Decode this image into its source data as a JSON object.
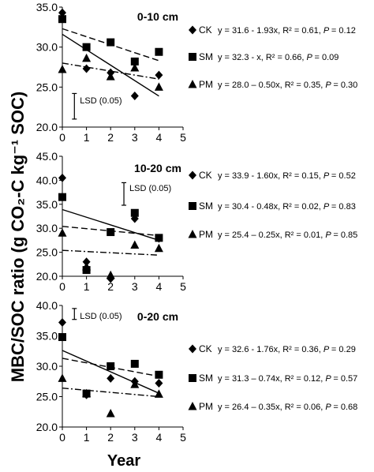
{
  "figure": {
    "ylabel": "MBC/SOC ratio (g CO₂-C kg⁻¹ SOC)",
    "xlabel": "Year"
  },
  "chart_data": [
    {
      "type": "scatter",
      "depth_label": "0-10 cm",
      "lsd_label": "LSD (0.05)",
      "lsd": {
        "x": 0.5,
        "y_low": 21.0,
        "y_high": 24.2
      },
      "xlim": [
        0,
        5
      ],
      "ylim": [
        20,
        35
      ],
      "xticks": [
        "0",
        "1",
        "2",
        "3",
        "4",
        "5"
      ],
      "yticks": [
        "20.0",
        "25.0",
        "30.0",
        "35.0"
      ],
      "series": [
        {
          "name": "CK",
          "marker": "diamond",
          "x": [
            0,
            1,
            2,
            3,
            4
          ],
          "y": [
            34.3,
            27.3,
            26.8,
            23.9,
            26.5
          ],
          "fit": {
            "intercept": 31.6,
            "slope": -1.93
          },
          "line": "solid",
          "equation": "y = 31.6 -  1.93x, R² = 0.61,",
          "p_label": "P",
          "p_value": "= 0.12"
        },
        {
          "name": "SM",
          "marker": "square",
          "x": [
            0,
            1,
            2,
            3,
            4
          ],
          "y": [
            33.5,
            30.0,
            30.6,
            28.2,
            29.4
          ],
          "fit": {
            "intercept": 32.3,
            "slope": -1.0
          },
          "line": "dashed",
          "equation": "y = 32.3 -  x, R² = 0.66,",
          "p_label": "P",
          "p_value": "= 0.09"
        },
        {
          "name": "PM",
          "marker": "triangle",
          "x": [
            0,
            1,
            2,
            3,
            4
          ],
          "y": [
            27.2,
            28.6,
            26.3,
            27.4,
            25.0
          ],
          "fit": {
            "intercept": 28.0,
            "slope": -0.5
          },
          "line": "dashdot",
          "equation": "y = 28.0 – 0.50x, R² = 0.35,",
          "p_label": "P",
          "p_value": "= 0.30"
        }
      ]
    },
    {
      "type": "scatter",
      "depth_label": "10-20 cm",
      "lsd_label": "LSD (0.05)",
      "lsd": {
        "x": 2.55,
        "y_low": 34.8,
        "y_high": 39.5
      },
      "xlim": [
        0,
        5
      ],
      "ylim": [
        20,
        45
      ],
      "xticks": [
        "0",
        "1",
        "2",
        "3",
        "4",
        "5"
      ],
      "yticks": [
        "20.0",
        "25.0",
        "30.0",
        "35.0",
        "40.0",
        "45.0"
      ],
      "series": [
        {
          "name": "CK",
          "marker": "diamond",
          "x": [
            0,
            1,
            2,
            3,
            4
          ],
          "y": [
            40.5,
            23.0,
            19.5,
            32.0,
            27.9
          ],
          "fit": {
            "intercept": 33.9,
            "slope": -1.6
          },
          "line": "solid",
          "equation": "y = 33.9 -  1.60x, R² = 0.15,",
          "p_label": "P",
          "p_value": "= 0.52"
        },
        {
          "name": "SM",
          "marker": "square",
          "x": [
            0,
            1,
            2,
            3,
            4
          ],
          "y": [
            36.5,
            21.3,
            29.2,
            33.2,
            28.0
          ],
          "fit": {
            "intercept": 30.4,
            "slope": -0.48
          },
          "line": "dashed",
          "equation": "y = 30.4 - 0.48x, R² = 0.02,",
          "p_label": "P",
          "p_value": "= 0.83"
        },
        {
          "name": "PM",
          "marker": "triangle",
          "x": [
            0,
            1,
            2,
            3,
            4
          ],
          "y": [
            29.0,
            22.0,
            20.2,
            26.5,
            25.8
          ],
          "fit": {
            "intercept": 25.4,
            "slope": -0.25
          },
          "line": "dashdot",
          "equation": "y = 25.4 – 0.25x, R² = 0.01,",
          "p_label": "P",
          "p_value": "= 0.85"
        }
      ]
    },
    {
      "type": "scatter",
      "depth_label": "0-20 cm",
      "lsd_label": "LSD (0.05)",
      "lsd": {
        "x": 0.5,
        "y_low": 37.7,
        "y_high": 39.5
      },
      "xlim": [
        0,
        5
      ],
      "ylim": [
        20,
        40
      ],
      "xticks": [
        "0",
        "1",
        "2",
        "3",
        "4",
        "5"
      ],
      "yticks": [
        "20.0",
        "25.0",
        "30.0",
        "35.0",
        "40.0"
      ],
      "series": [
        {
          "name": "CK",
          "marker": "diamond",
          "x": [
            0,
            1,
            2,
            3,
            4
          ],
          "y": [
            37.2,
            25.3,
            28.0,
            27.5,
            27.2
          ],
          "fit": {
            "intercept": 32.6,
            "slope": -1.76
          },
          "line": "solid",
          "equation": "y = 32.6 -  1.76x, R² = 0.36,",
          "p_label": "P",
          "p_value": "= 0.29"
        },
        {
          "name": "SM",
          "marker": "square",
          "x": [
            0,
            1,
            2,
            3,
            4
          ],
          "y": [
            34.8,
            25.5,
            30.0,
            30.4,
            28.6
          ],
          "fit": {
            "intercept": 31.3,
            "slope": -0.74
          },
          "line": "dashed",
          "equation": "y = 31.3 – 0.74x, R² = 0.12,",
          "p_label": "P",
          "p_value": "= 0.57"
        },
        {
          "name": "PM",
          "marker": "triangle",
          "x": [
            0,
            1,
            2,
            3,
            4
          ],
          "y": [
            28.0,
            25.5,
            22.2,
            27.0,
            25.4
          ],
          "fit": {
            "intercept": 26.4,
            "slope": -0.35
          },
          "line": "dashdot",
          "equation": "y = 26.4 – 0.35x, R² = 0.06,",
          "p_label": "P",
          "p_value": "= 0.68"
        }
      ]
    }
  ]
}
